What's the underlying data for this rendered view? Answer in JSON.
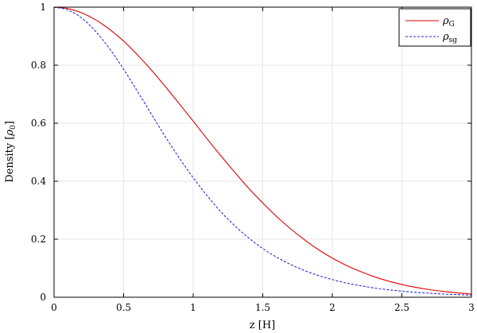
{
  "chart_data": {
    "type": "line",
    "title": "",
    "xlabel": "z [H]",
    "ylabel_prefix": "Density [",
    "ylabel_symbol": "ρ",
    "ylabel_sub": "0",
    "ylabel_suffix": "]",
    "xlim": [
      0,
      3
    ],
    "ylim": [
      0,
      1
    ],
    "xticks": [
      "0",
      "0.5",
      "1",
      "1.5",
      "2",
      "2.5",
      "3"
    ],
    "yticks": [
      "0",
      "0.2",
      "0.4",
      "0.6",
      "0.8",
      "1"
    ],
    "grid": true,
    "legend_position": "top-right",
    "series": [
      {
        "symbol": "ρ",
        "subscript": "G",
        "color": "#e00000",
        "style": "solid",
        "x": [
          0,
          0.1,
          0.2,
          0.3,
          0.4,
          0.5,
          0.6,
          0.7,
          0.8,
          0.9,
          1.0,
          1.1,
          1.2,
          1.3,
          1.4,
          1.5,
          1.6,
          1.7,
          1.8,
          1.9,
          2.0,
          2.1,
          2.2,
          2.3,
          2.4,
          2.5,
          2.6,
          2.7,
          2.8,
          2.9,
          3.0
        ],
        "y": [
          1.0,
          0.995,
          0.98,
          0.956,
          0.923,
          0.883,
          0.835,
          0.783,
          0.726,
          0.667,
          0.607,
          0.546,
          0.487,
          0.43,
          0.375,
          0.325,
          0.278,
          0.236,
          0.198,
          0.164,
          0.135,
          0.11,
          0.089,
          0.071,
          0.056,
          0.044,
          0.034,
          0.026,
          0.02,
          0.015,
          0.011
        ]
      },
      {
        "symbol": "ρ",
        "subscript": "sg",
        "color": "#2a2ad8",
        "style": "dashed",
        "x": [
          0,
          0.1,
          0.2,
          0.3,
          0.4,
          0.5,
          0.6,
          0.7,
          0.8,
          0.9,
          1.0,
          1.1,
          1.2,
          1.3,
          1.4,
          1.5,
          1.6,
          1.7,
          1.8,
          1.9,
          2.0,
          2.1,
          2.2,
          2.3,
          2.4,
          2.5,
          2.6,
          2.7,
          2.8,
          2.9,
          3.0
        ],
        "y": [
          1.0,
          0.99,
          0.962,
          0.916,
          0.856,
          0.786,
          0.709,
          0.631,
          0.553,
          0.48,
          0.412,
          0.35,
          0.294,
          0.246,
          0.204,
          0.168,
          0.138,
          0.113,
          0.092,
          0.075,
          0.061,
          0.049,
          0.04,
          0.032,
          0.026,
          0.021,
          0.017,
          0.014,
          0.011,
          0.009,
          0.007
        ]
      }
    ]
  }
}
